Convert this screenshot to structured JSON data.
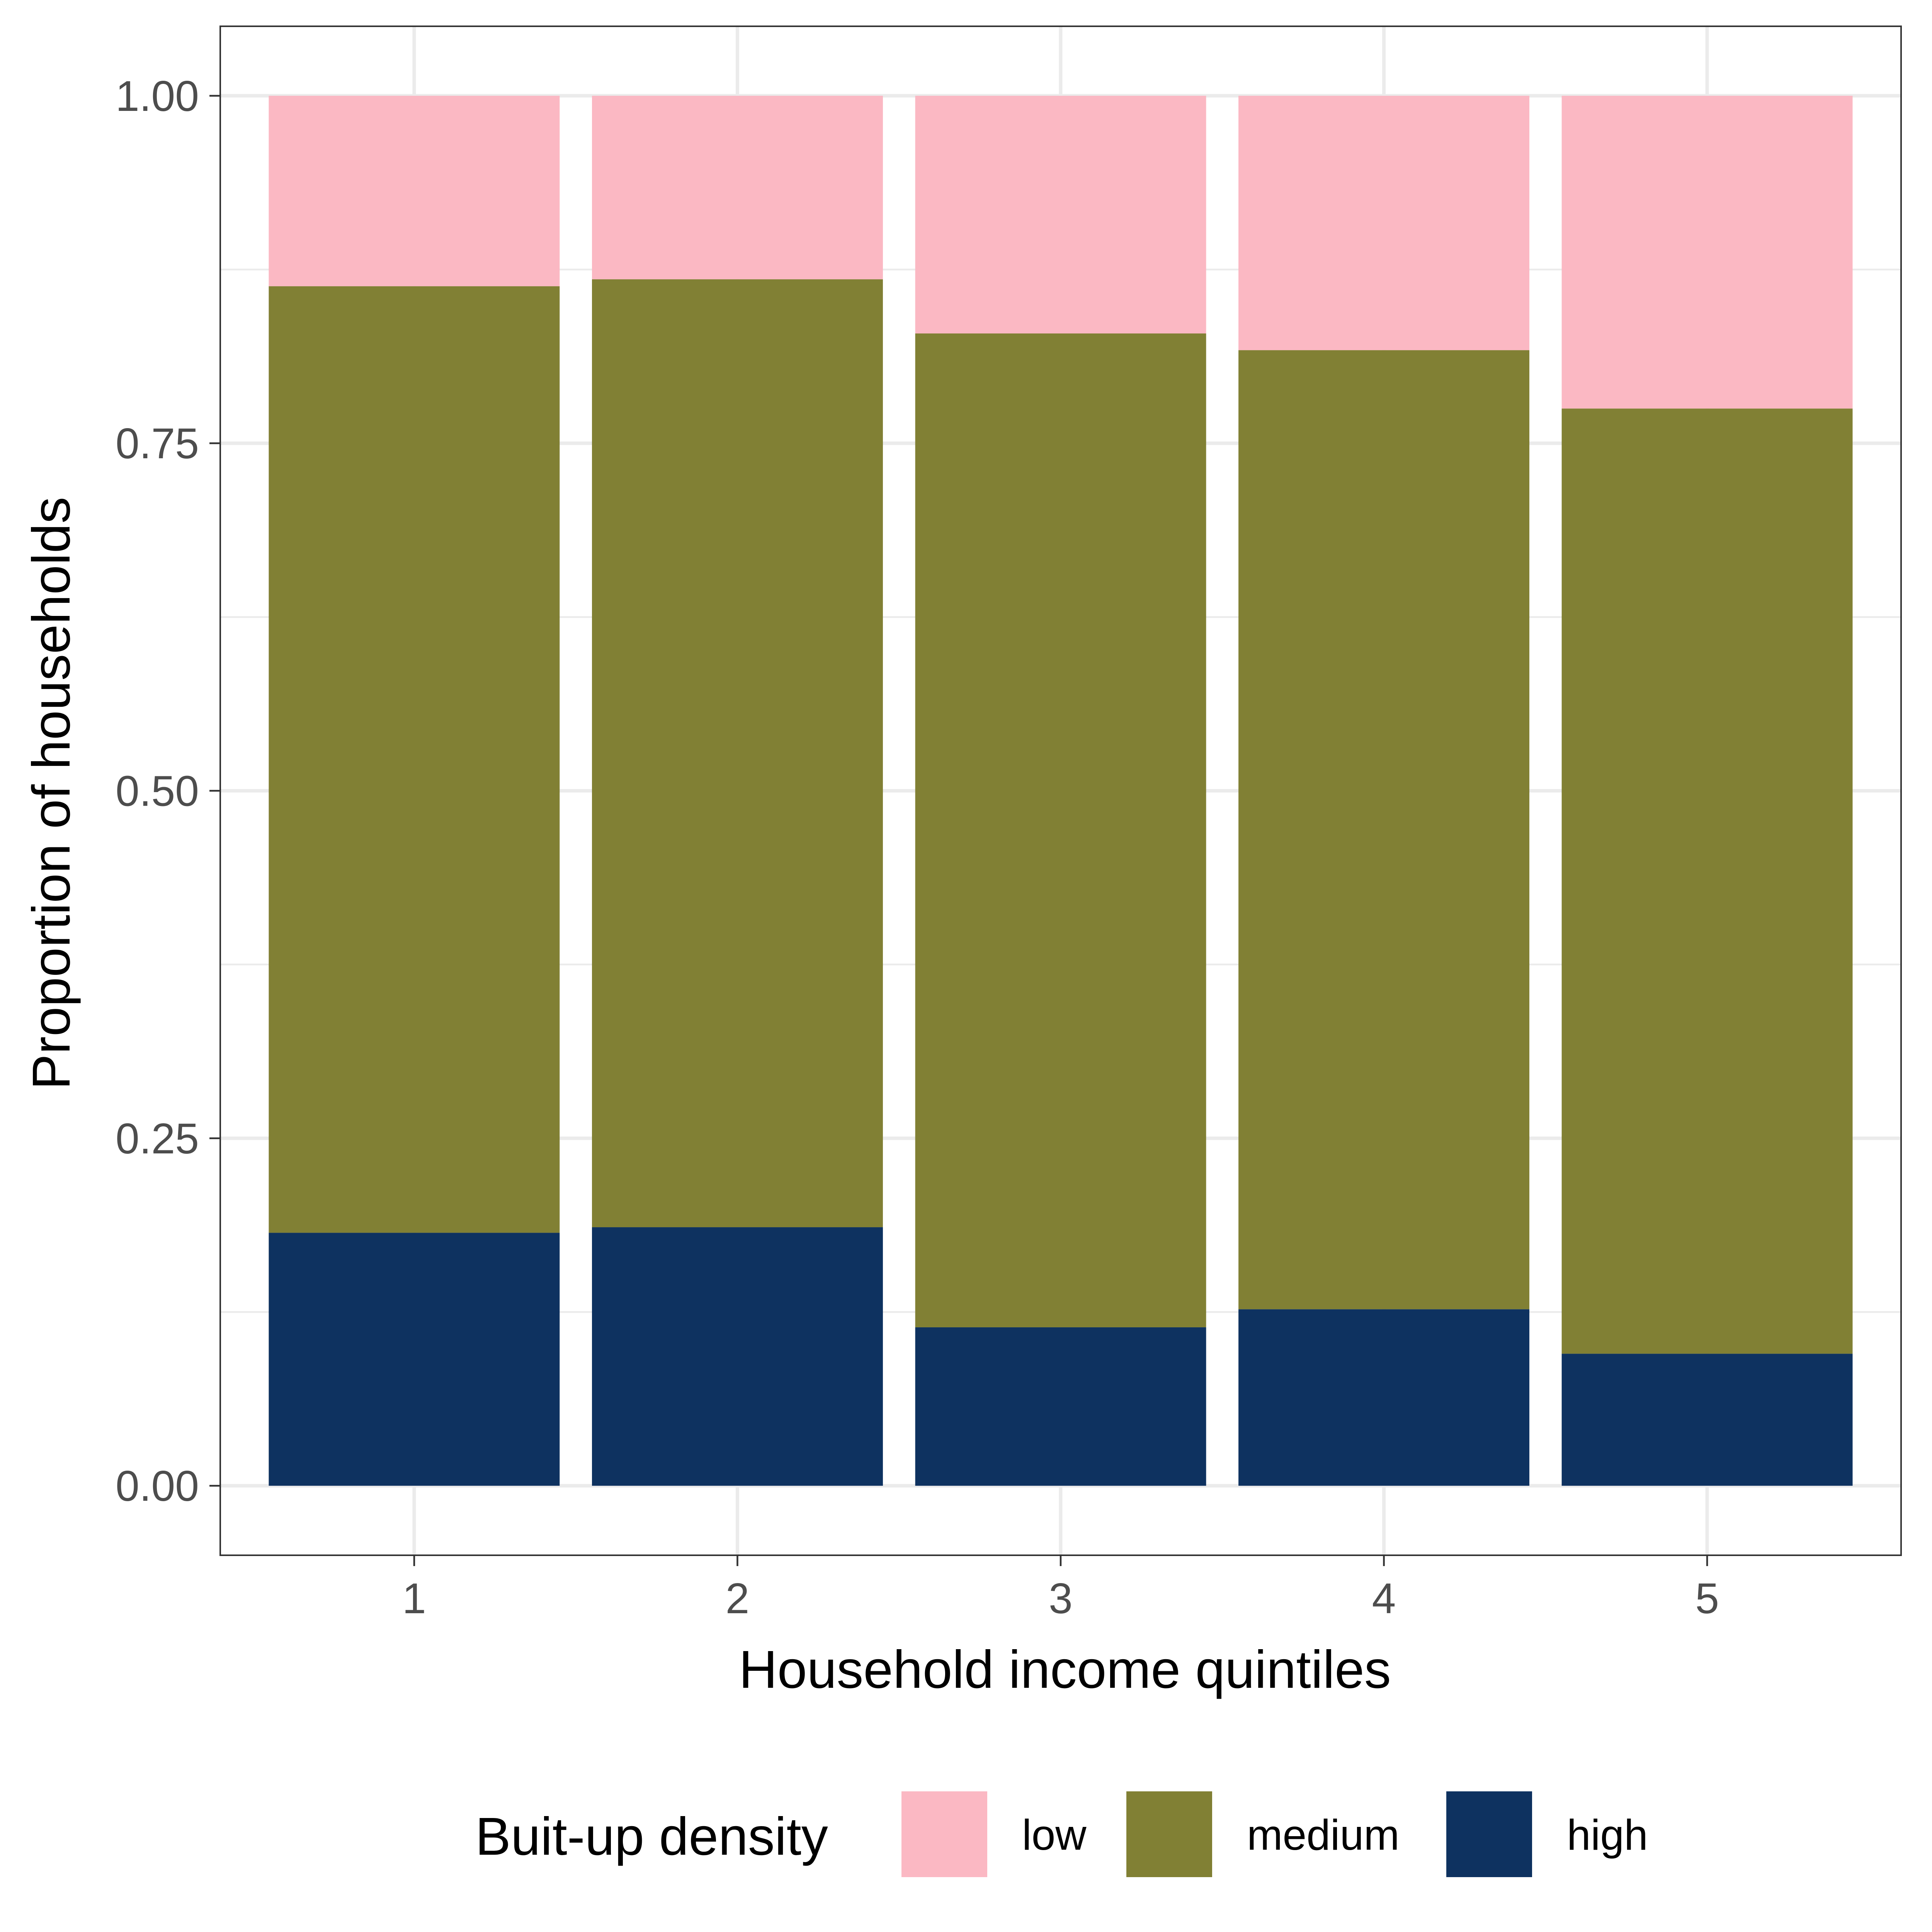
{
  "chart_data": {
    "type": "bar",
    "stacked": true,
    "categories": [
      "1",
      "2",
      "3",
      "4",
      "5"
    ],
    "series": [
      {
        "name": "high",
        "color": "#0e3260",
        "values": [
          0.182,
          0.186,
          0.114,
          0.127,
          0.095
        ]
      },
      {
        "name": "medium",
        "color": "#818034",
        "values": [
          0.681,
          0.682,
          0.715,
          0.69,
          0.68
        ]
      },
      {
        "name": "low",
        "color": "#fbb8c3",
        "values": [
          0.137,
          0.132,
          0.171,
          0.183,
          0.225
        ]
      }
    ],
    "xlabel": "Household income quintiles",
    "ylabel": "Proportion of households",
    "ylim": [
      -0.05,
      1.05
    ],
    "yticks": [
      0,
      0.25,
      0.5,
      0.75,
      1.0
    ],
    "ytick_labels": [
      "0.00",
      "0.25",
      "0.50",
      "0.75",
      "1.00"
    ],
    "grid": true,
    "legend": {
      "title": "Buit-up density",
      "position": "bottom",
      "items": [
        "low",
        "medium",
        "high"
      ]
    }
  }
}
